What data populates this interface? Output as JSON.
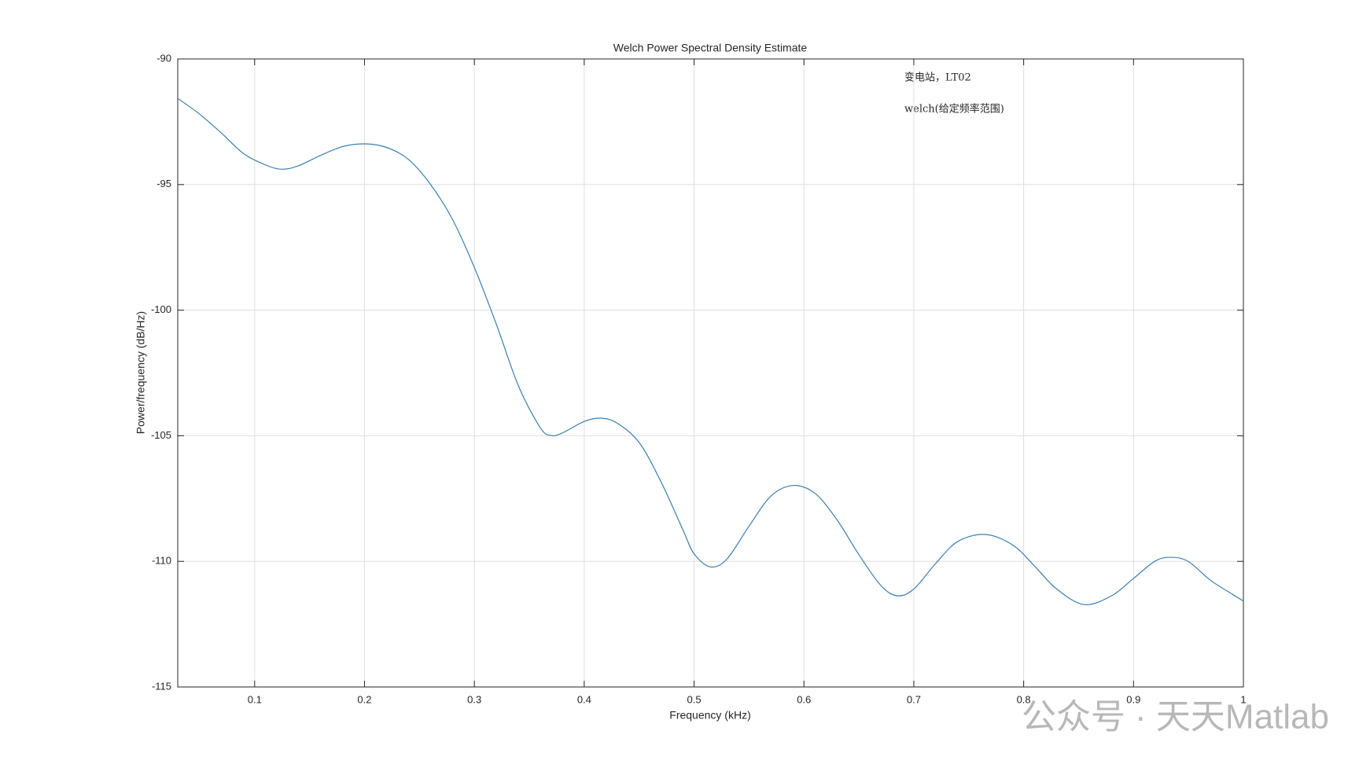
{
  "chart_data": {
    "type": "line",
    "title": "Welch Power Spectral Density Estimate",
    "xlabel": "Frequency (kHz)",
    "ylabel": "Power/frequency (dB/Hz)",
    "annotations": [
      "变电站，LT02",
      "welch(给定频率范围)"
    ],
    "watermark": "公众号 · 天天Matlab",
    "x": [
      0.03,
      0.05,
      0.07,
      0.09,
      0.11,
      0.125,
      0.14,
      0.16,
      0.18,
      0.2,
      0.22,
      0.24,
      0.26,
      0.28,
      0.3,
      0.32,
      0.34,
      0.36,
      0.37,
      0.38,
      0.4,
      0.415,
      0.43,
      0.45,
      0.47,
      0.49,
      0.5,
      0.515,
      0.53,
      0.55,
      0.57,
      0.59,
      0.61,
      0.63,
      0.65,
      0.67,
      0.685,
      0.7,
      0.72,
      0.74,
      0.765,
      0.79,
      0.81,
      0.83,
      0.855,
      0.88,
      0.9,
      0.92,
      0.935,
      0.95,
      0.97,
      0.99,
      1.0
    ],
    "series": [
      {
        "color": "#3a7fb3",
        "values": [
          -91.57,
          -92.2,
          -92.96,
          -93.77,
          -94.22,
          -94.39,
          -94.25,
          -93.84,
          -93.49,
          -93.38,
          -93.52,
          -94.0,
          -94.99,
          -96.38,
          -98.3,
          -100.56,
          -103.0,
          -104.68,
          -104.99,
          -104.89,
          -104.43,
          -104.3,
          -104.5,
          -105.27,
          -106.84,
          -108.76,
          -109.7,
          -110.22,
          -109.9,
          -108.6,
          -107.4,
          -106.98,
          -107.29,
          -108.34,
          -109.73,
          -110.96,
          -111.37,
          -111.1,
          -110.08,
          -109.21,
          -108.93,
          -109.35,
          -110.19,
          -111.1,
          -111.72,
          -111.37,
          -110.68,
          -109.98,
          -109.84,
          -110.01,
          -110.75,
          -111.31,
          -111.58
        ]
      }
    ],
    "xlim": [
      0.03,
      1
    ],
    "ylim": [
      -115,
      -90
    ],
    "xticks": [
      0.1,
      0.2,
      0.3,
      0.4,
      0.5,
      0.6,
      0.7,
      0.8,
      0.9,
      1
    ],
    "yticks": [
      -115,
      -110,
      -105,
      -100,
      -95,
      -90
    ],
    "grid": true
  }
}
